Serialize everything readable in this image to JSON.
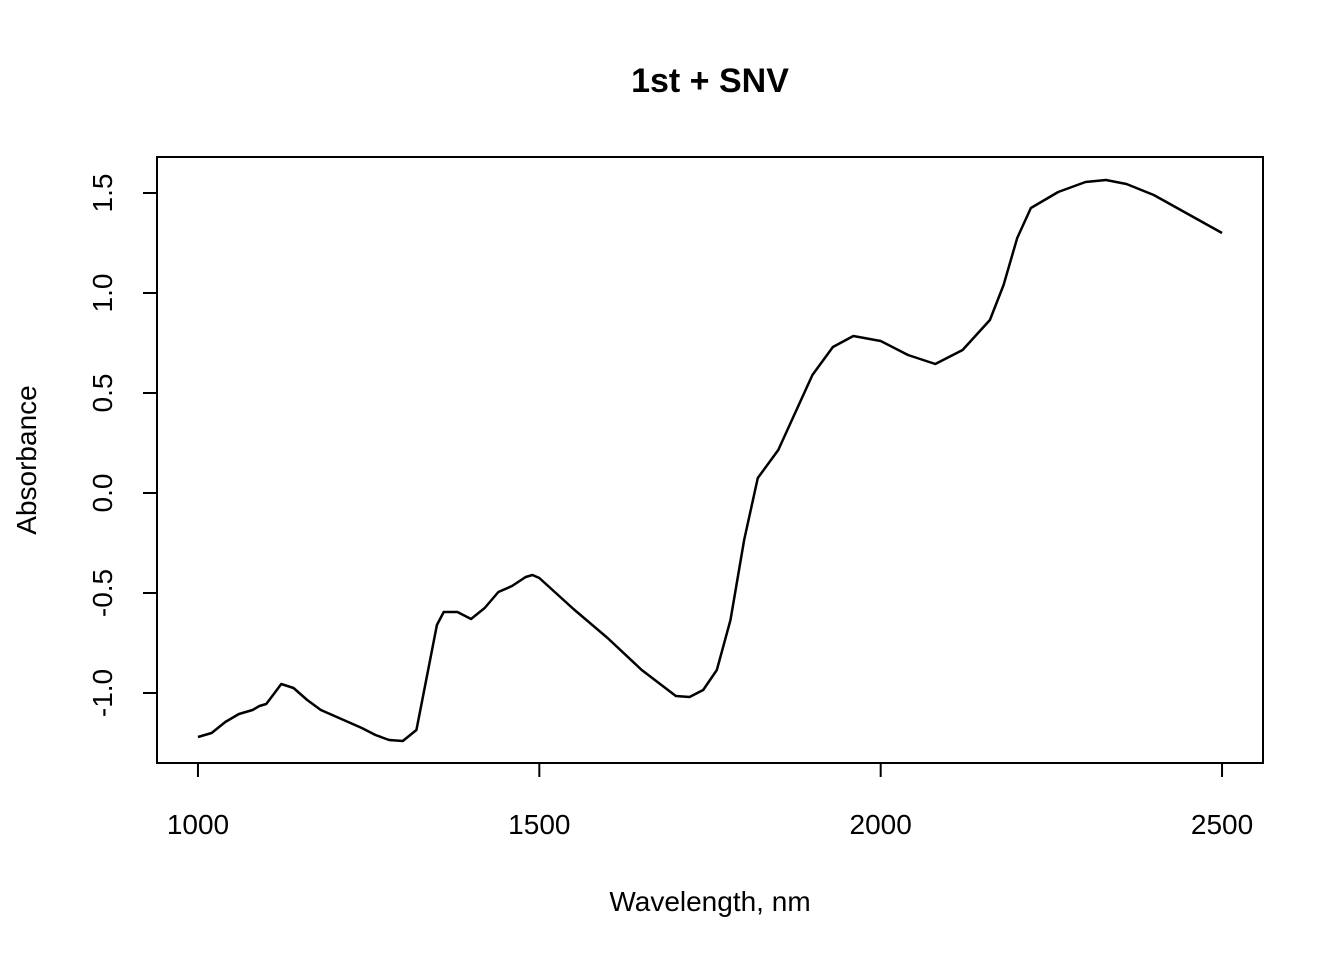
{
  "chart_data": {
    "type": "line",
    "title": "1st + SNV",
    "x_label": "Wavelength, nm",
    "y_label": "Absorbance",
    "x": [
      1000,
      1020,
      1040,
      1060,
      1080,
      1090,
      1100,
      1110,
      1122,
      1140,
      1160,
      1180,
      1200,
      1220,
      1240,
      1260,
      1280,
      1300,
      1320,
      1340,
      1350,
      1360,
      1380,
      1400,
      1420,
      1440,
      1460,
      1480,
      1490,
      1500,
      1550,
      1600,
      1650,
      1700,
      1720,
      1740,
      1760,
      1780,
      1800,
      1820,
      1850,
      1880,
      1900,
      1930,
      1960,
      2000,
      2040,
      2080,
      2120,
      2160,
      2180,
      2200,
      2220,
      2260,
      2300,
      2330,
      2360,
      2400,
      2450,
      2500
    ],
    "series": [
      {
        "color": "#000000",
        "values": [
          -1.22,
          -1.2,
          -1.145,
          -1.105,
          -1.085,
          -1.065,
          -1.055,
          -1.01,
          -0.955,
          -0.975,
          -1.035,
          -1.085,
          -1.115,
          -1.145,
          -1.175,
          -1.21,
          -1.235,
          -1.24,
          -1.185,
          -0.835,
          -0.66,
          -0.595,
          -0.595,
          -0.63,
          -0.575,
          -0.495,
          -0.465,
          -0.42,
          -0.41,
          -0.425,
          -0.58,
          -0.725,
          -0.885,
          -1.015,
          -1.02,
          -0.985,
          -0.885,
          -0.635,
          -0.235,
          0.075,
          0.215,
          0.44,
          0.59,
          0.73,
          0.785,
          0.76,
          0.69,
          0.645,
          0.715,
          0.865,
          1.04,
          1.275,
          1.425,
          1.505,
          1.555,
          1.565,
          1.545,
          1.49,
          1.395,
          1.3
        ]
      }
    ],
    "xlim": [
      940,
      2560
    ],
    "ylim": [
      -1.35,
      1.68
    ],
    "xticks": [
      1000,
      1500,
      2000,
      2500
    ],
    "yticks": [
      {
        "value": -1.0,
        "label": "-1.0"
      },
      {
        "value": -0.5,
        "label": "-0.5"
      },
      {
        "value": 0,
        "label": "0.0"
      },
      0.5,
      {
        "value": 1.0,
        "label": "1.0"
      },
      1.5
    ],
    "grid": false
  }
}
